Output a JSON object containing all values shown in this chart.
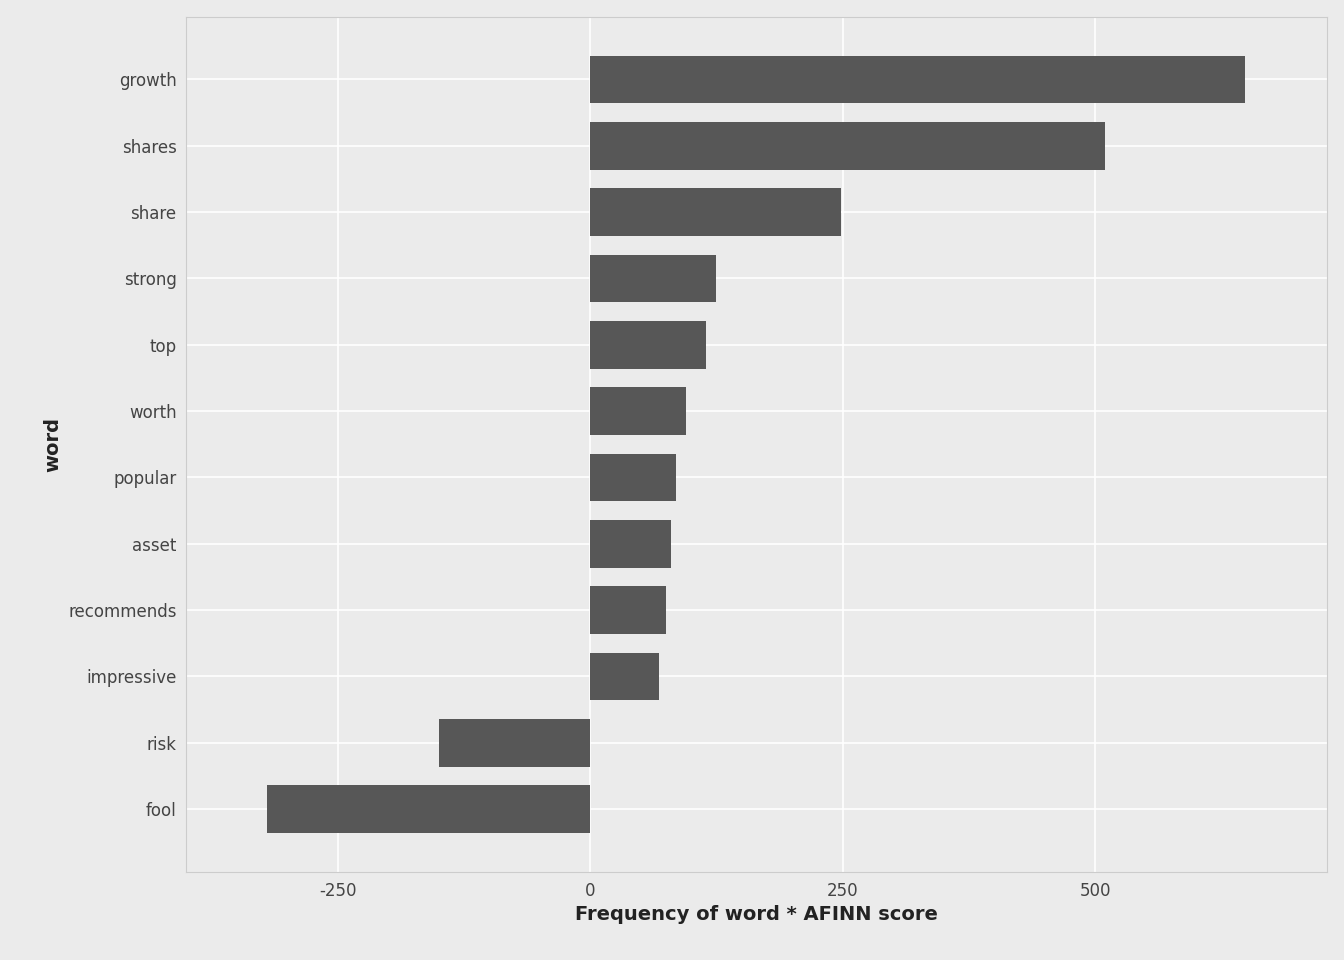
{
  "words": [
    "fool",
    "risk",
    "impressive",
    "recommends",
    "asset",
    "popular",
    "worth",
    "top",
    "strong",
    "share",
    "shares",
    "growth"
  ],
  "values": [
    -320,
    -150,
    68,
    75,
    80,
    85,
    95,
    115,
    125,
    248,
    510,
    648
  ],
  "bar_color": "#575757",
  "xlabel": "Frequency of word * AFINN score",
  "ylabel": "word",
  "xlim": [
    -400,
    730
  ],
  "xticks": [
    -250,
    0,
    250,
    500
  ],
  "background_color": "#ebebeb",
  "plot_background": "#ebebeb",
  "grid_color": "#ffffff",
  "bar_height": 0.72,
  "xlabel_fontsize": 14,
  "ylabel_fontsize": 14,
  "tick_fontsize": 12,
  "tick_label_color": "#444444",
  "spine_color": "#cccccc"
}
